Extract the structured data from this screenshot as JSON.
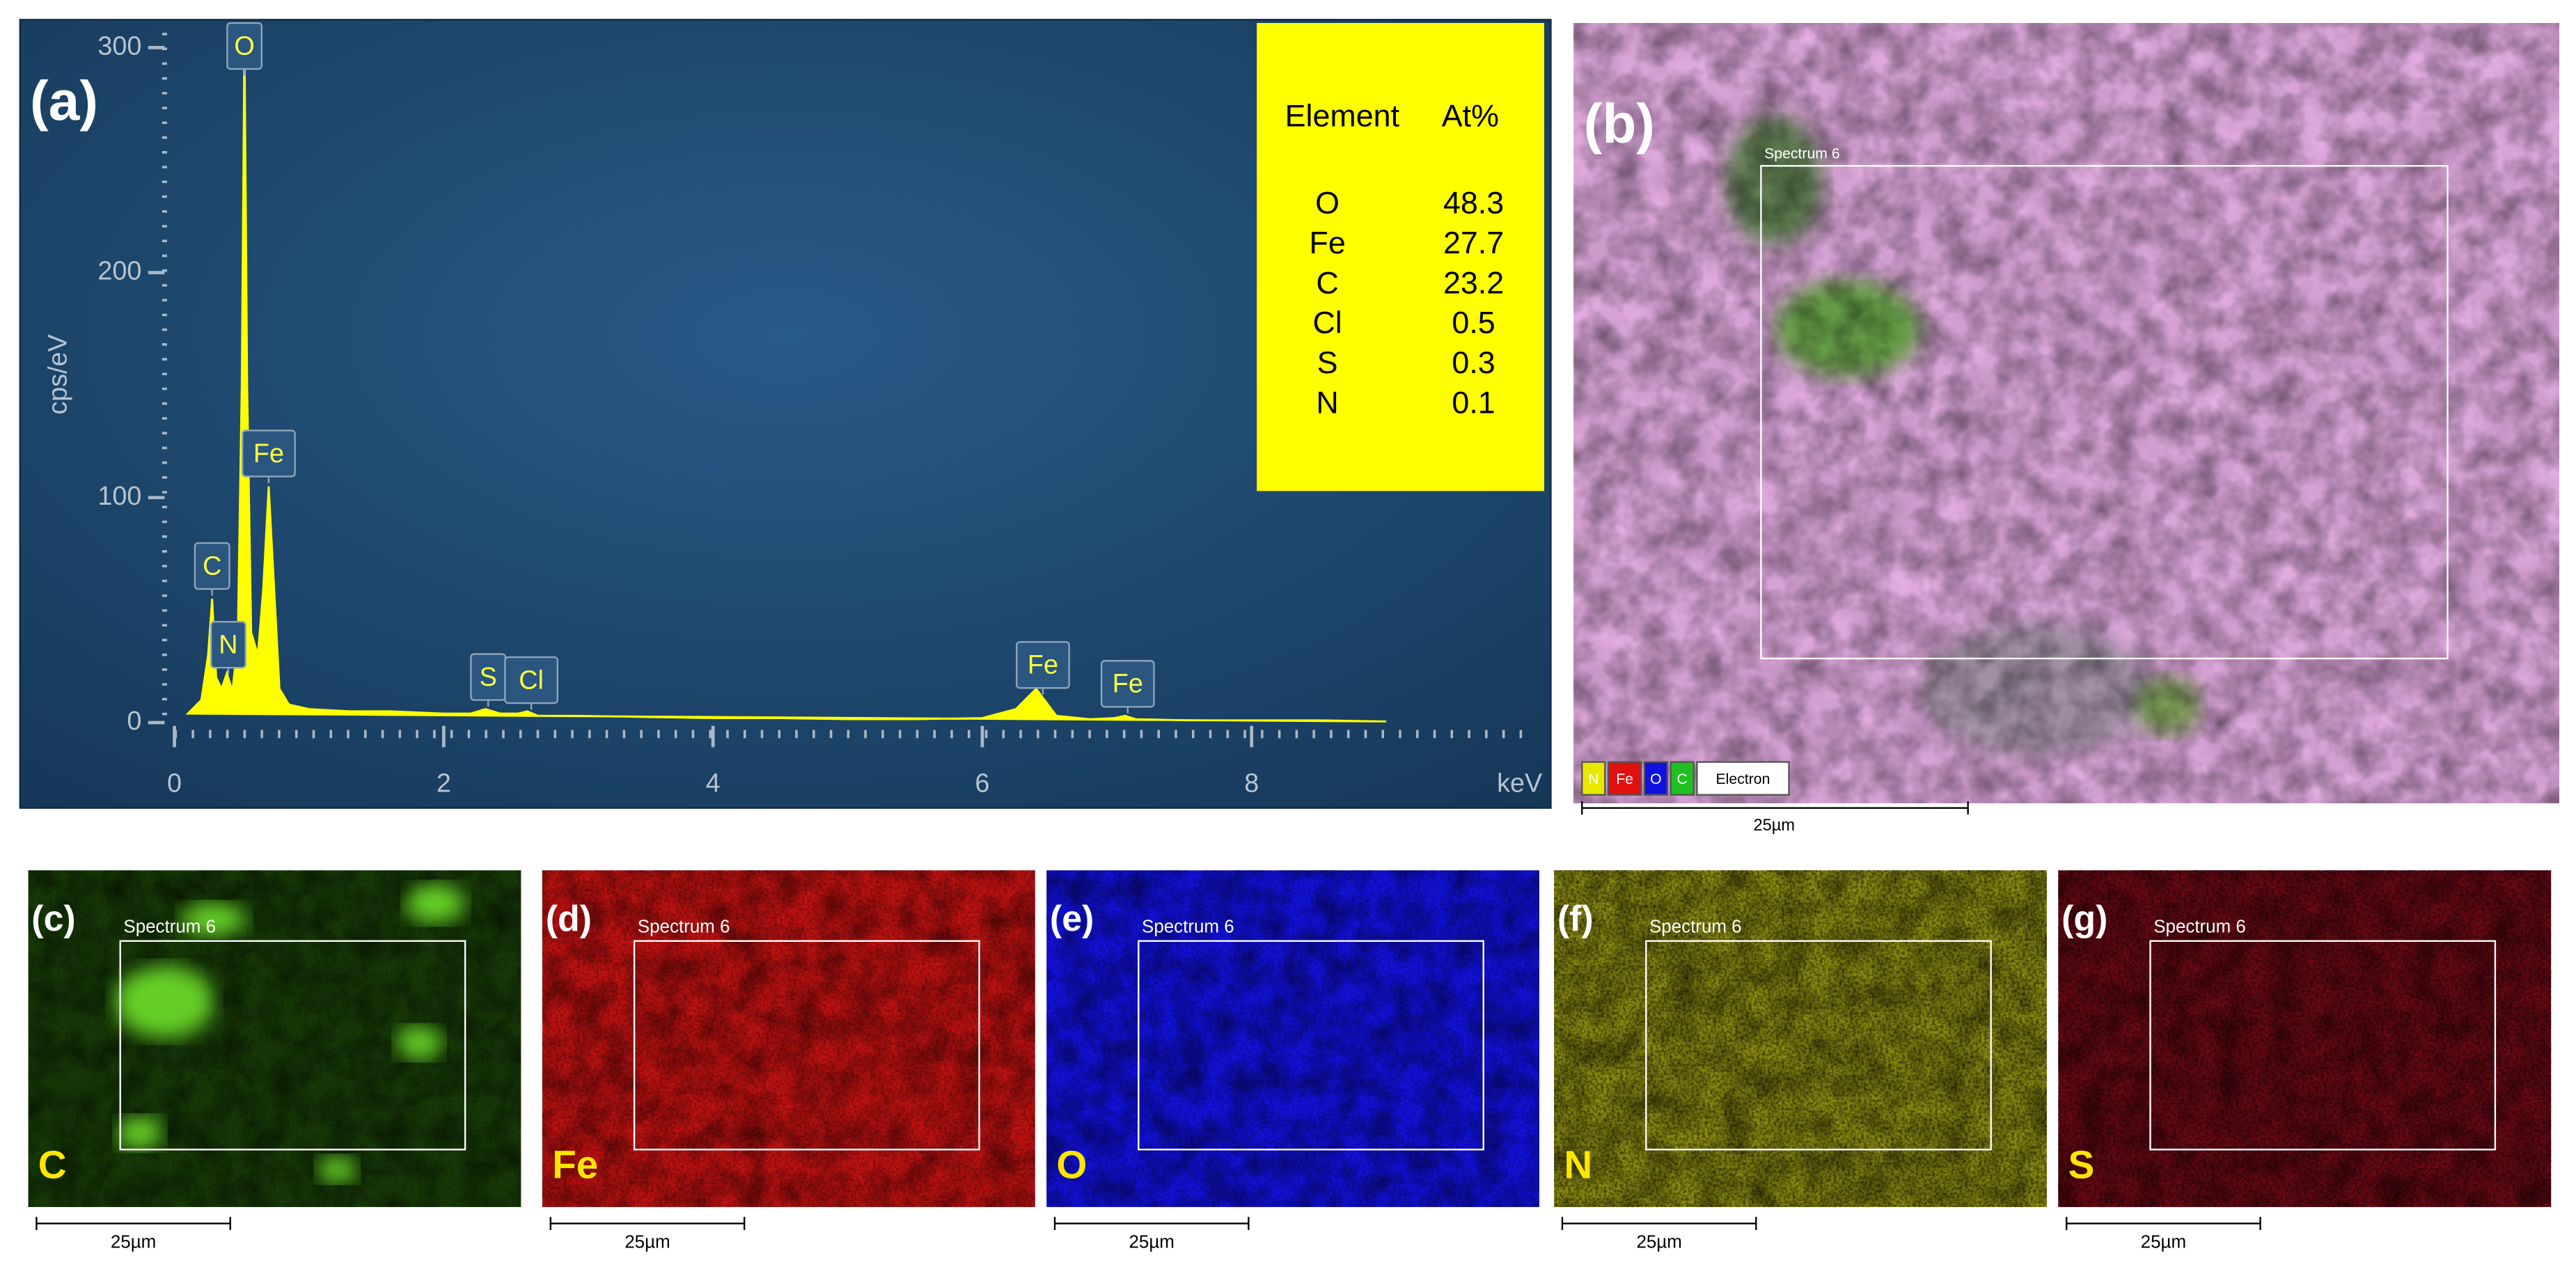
{
  "chart_data": {
    "type": "line",
    "panel_label": "(a)",
    "x_label": "keV",
    "y_label": "cps/eV",
    "x": [
      0.1,
      0.2,
      0.25,
      0.28,
      0.31,
      0.35,
      0.39,
      0.43,
      0.47,
      0.5,
      0.52,
      0.54,
      0.57,
      0.62,
      0.66,
      0.7,
      0.74,
      0.78,
      0.85,
      1.0,
      1.3,
      1.6,
      2.0,
      2.2,
      2.31,
      2.42,
      2.55,
      2.62,
      2.7,
      3.0,
      3.5,
      4,
      4.5,
      5,
      5.5,
      6.0,
      6.25,
      6.35,
      6.4,
      6.45,
      6.55,
      6.8,
      6.98,
      7.06,
      7.14,
      7.5,
      8,
      8.5,
      9.0
    ],
    "series": [
      {
        "color": "#ffff00",
        "values": [
          4,
          10,
          30,
          55,
          20,
          15,
          22,
          14,
          35,
          150,
          305,
          150,
          40,
          30,
          60,
          105,
          60,
          15,
          8,
          6,
          5,
          5,
          4,
          4,
          6,
          4,
          4,
          5,
          3,
          3,
          2.5,
          2,
          2,
          1.5,
          1.5,
          2,
          6,
          12,
          15,
          11,
          3,
          1.5,
          2,
          3,
          1.5,
          1,
          1,
          1,
          0.5
        ]
      }
    ],
    "xlim": [
      0,
      10.1
    ],
    "xticks": [
      0,
      2,
      4,
      6,
      8
    ],
    "ylim": [
      0,
      310
    ],
    "yticks": [
      0,
      100,
      200,
      300
    ],
    "grid": false,
    "peaks": [
      {
        "label": "O",
        "x": 0.52
      },
      {
        "label": "C",
        "x": 0.28
      },
      {
        "label": "N",
        "x": 0.4
      },
      {
        "label": "Fe",
        "x": 0.7
      },
      {
        "label": "S",
        "x": 2.33
      },
      {
        "label": "Cl",
        "x": 2.65
      },
      {
        "label": "Fe",
        "x": 6.45
      },
      {
        "label": "Fe",
        "x": 7.08
      }
    ]
  },
  "composition_table": {
    "headers": [
      "Element",
      "At%"
    ],
    "rows": [
      [
        "O",
        48.3
      ],
      [
        "Fe",
        27.7
      ],
      [
        "C",
        23.2
      ],
      [
        "Cl",
        0.5
      ],
      [
        "S",
        0.3
      ],
      [
        "N",
        0.1
      ]
    ]
  },
  "map_panel": {
    "label": "(b)",
    "region": "Spectrum 6",
    "legend": [
      "N",
      "Fe",
      "O",
      "C",
      "Electron"
    ],
    "scale": "25µm"
  },
  "element_maps": [
    {
      "label": "(c)",
      "region": "Spectrum 6",
      "element": "C",
      "scale": "25µm"
    },
    {
      "label": "(d)",
      "region": "Spectrum 6",
      "element": "Fe",
      "scale": "25µm"
    },
    {
      "label": "(e)",
      "region": "Spectrum 6",
      "element": "O",
      "scale": "25µm"
    },
    {
      "label": "(f)",
      "region": "Spectrum 6",
      "element": "N",
      "scale": "25µm"
    },
    {
      "label": "(g)",
      "region": "Spectrum 6",
      "element": "S",
      "scale": "25µm"
    }
  ]
}
